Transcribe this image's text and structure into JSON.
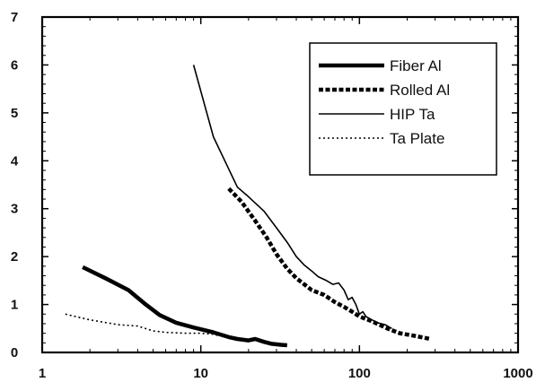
{
  "chart_data": {
    "type": "line",
    "title": "",
    "xlabel": "",
    "ylabel": "",
    "xscale": "log",
    "xlim": [
      1,
      1000
    ],
    "ylim": [
      0,
      7
    ],
    "xticks": [
      1,
      10,
      100,
      1000
    ],
    "xtick_labels": [
      "1",
      "10",
      "100",
      "1000"
    ],
    "yticks": [
      0,
      1,
      2,
      3,
      4,
      5,
      6,
      7
    ],
    "ytick_labels": [
      "0",
      "1",
      "2",
      "3",
      "4",
      "5",
      "6",
      "7"
    ],
    "grid": false,
    "legend_position": "top-right",
    "series": [
      {
        "name": "Fiber Al",
        "style": "thick-solid",
        "color": "#000000",
        "points": [
          [
            1.8,
            1.78
          ],
          [
            2.5,
            1.55
          ],
          [
            3.5,
            1.3
          ],
          [
            4.5,
            1.0
          ],
          [
            5.5,
            0.78
          ],
          [
            7,
            0.62
          ],
          [
            9,
            0.52
          ],
          [
            12,
            0.42
          ],
          [
            15,
            0.32
          ],
          [
            17,
            0.28
          ],
          [
            20,
            0.25
          ],
          [
            22,
            0.28
          ],
          [
            25,
            0.22
          ],
          [
            28,
            0.18
          ],
          [
            32,
            0.16
          ],
          [
            35,
            0.15
          ]
        ]
      },
      {
        "name": "Rolled Al",
        "style": "thick-dashed",
        "color": "#000000",
        "points": [
          [
            15,
            3.42
          ],
          [
            18,
            3.15
          ],
          [
            22,
            2.75
          ],
          [
            26,
            2.4
          ],
          [
            30,
            2.05
          ],
          [
            35,
            1.75
          ],
          [
            40,
            1.55
          ],
          [
            50,
            1.3
          ],
          [
            60,
            1.2
          ],
          [
            70,
            1.05
          ],
          [
            80,
            0.95
          ],
          [
            90,
            0.85
          ],
          [
            100,
            0.75
          ],
          [
            120,
            0.65
          ],
          [
            150,
            0.5
          ],
          [
            180,
            0.4
          ],
          [
            220,
            0.35
          ],
          [
            280,
            0.28
          ]
        ]
      },
      {
        "name": "HIP Ta",
        "style": "thin-solid",
        "color": "#000000",
        "points": [
          [
            9,
            6.0
          ],
          [
            12,
            4.5
          ],
          [
            17,
            3.45
          ],
          [
            20,
            3.25
          ],
          [
            25,
            2.95
          ],
          [
            30,
            2.6
          ],
          [
            35,
            2.3
          ],
          [
            40,
            2.0
          ],
          [
            45,
            1.82
          ],
          [
            50,
            1.7
          ],
          [
            55,
            1.58
          ],
          [
            62,
            1.5
          ],
          [
            68,
            1.42
          ],
          [
            74,
            1.45
          ],
          [
            80,
            1.3
          ],
          [
            85,
            1.1
          ],
          [
            90,
            1.15
          ],
          [
            95,
            1.0
          ],
          [
            100,
            0.8
          ],
          [
            105,
            0.85
          ],
          [
            110,
            0.75
          ],
          [
            120,
            0.68
          ],
          [
            130,
            0.62
          ],
          [
            145,
            0.58
          ],
          [
            160,
            0.5
          ]
        ]
      },
      {
        "name": "Ta Plate",
        "style": "dotted",
        "color": "#000000",
        "points": [
          [
            1.4,
            0.8
          ],
          [
            2,
            0.68
          ],
          [
            3,
            0.58
          ],
          [
            4,
            0.55
          ],
          [
            5,
            0.45
          ],
          [
            6,
            0.42
          ],
          [
            8,
            0.4
          ],
          [
            10,
            0.4
          ],
          [
            12,
            0.38
          ],
          [
            13,
            0.35
          ]
        ]
      }
    ]
  }
}
